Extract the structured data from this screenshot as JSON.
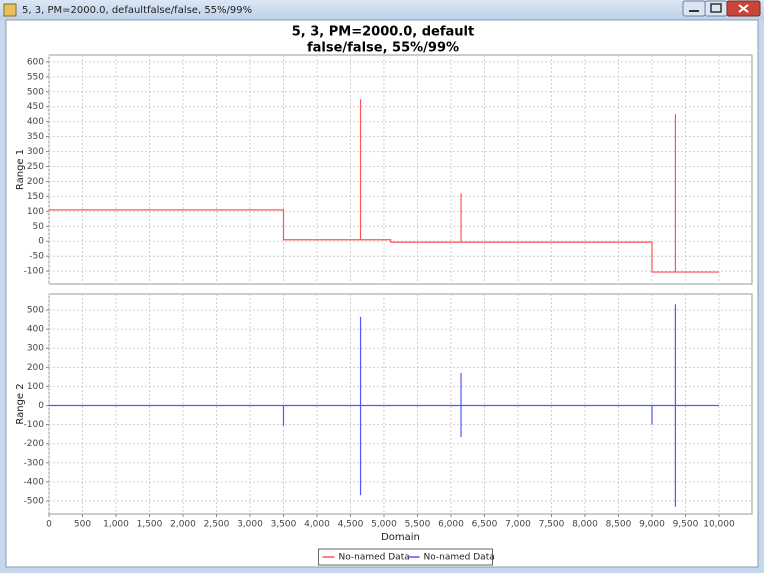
{
  "window": {
    "title": "5, 3, PM=2000.0, defaultfalse/false, 55%/99%"
  },
  "chart_data": [
    {
      "type": "line",
      "title": [
        "5, 3, PM=2000.0, default",
        "false/false, 55%/99%"
      ],
      "ylabel": "Range 1",
      "xlim": [
        0,
        10493
      ],
      "xticks": [
        0,
        500,
        1000,
        1500,
        2000,
        2500,
        3000,
        3500,
        4000,
        4500,
        5000,
        5500,
        6000,
        6500,
        7000,
        7500,
        8000,
        8500,
        9000,
        9500,
        10000
      ],
      "ylim": [
        -143,
        623
      ],
      "yticks": [
        -100,
        -50,
        0,
        50,
        100,
        150,
        200,
        250,
        300,
        350,
        400,
        450,
        500,
        550,
        600
      ],
      "grid": true,
      "series": [
        {
          "name": "No-named Data",
          "color": "#ff5555",
          "x": [
            0,
            3500,
            3500,
            4650,
            4650,
            4650,
            5100,
            5100,
            6150,
            6150,
            6150,
            9000,
            9000,
            9350,
            9350,
            9350,
            10000
          ],
          "values": [
            105,
            105,
            5,
            5,
            475,
            5,
            5,
            -3,
            -3,
            160,
            -3,
            -3,
            -103,
            -103,
            425,
            -103,
            -103
          ]
        }
      ]
    },
    {
      "type": "line",
      "ylabel": "Range 2",
      "xlabel": "Domain",
      "xlim": [
        0,
        10493
      ],
      "xticks": [
        0,
        500,
        {
          "value": 1000,
          "label": "1,000"
        },
        {
          "value": 1500,
          "label": "1,500"
        },
        {
          "value": 2000,
          "label": "2,000"
        },
        {
          "value": 2500,
          "label": "2,500"
        },
        {
          "value": 3000,
          "label": "3,000"
        },
        {
          "value": 3500,
          "label": "3,500"
        },
        {
          "value": 4000,
          "label": "4,000"
        },
        {
          "value": 4500,
          "label": "4,500"
        },
        {
          "value": 5000,
          "label": "5,000"
        },
        {
          "value": 5500,
          "label": "5,500"
        },
        {
          "value": 6000,
          "label": "6,000"
        },
        {
          "value": 6500,
          "label": "6,500"
        },
        {
          "value": 7000,
          "label": "7,000"
        },
        {
          "value": 7500,
          "label": "7,500"
        },
        {
          "value": 8000,
          "label": "8,000"
        },
        {
          "value": 8500,
          "label": "8,500"
        },
        {
          "value": 9000,
          "label": "9,000"
        },
        {
          "value": 9500,
          "label": "9,500"
        },
        {
          "value": 10000,
          "label": "10,000"
        }
      ],
      "ylim": [
        -568,
        584
      ],
      "yticks": [
        -500,
        -400,
        -300,
        -200,
        -100,
        0,
        100,
        200,
        300,
        400,
        500
      ],
      "grid": true,
      "legend": "bottom",
      "series": [
        {
          "name": "No-named Data",
          "color": "#5555ff",
          "x": [
            0,
            3500,
            3500,
            3500,
            4650,
            4650,
            4650,
            4650,
            6150,
            6150,
            6150,
            6150,
            9000,
            9000,
            9000,
            9350,
            9350,
            9350,
            9350,
            10000
          ],
          "values": [
            0,
            0,
            -105,
            0,
            0,
            465,
            -470,
            0,
            0,
            170,
            -165,
            0,
            0,
            -100,
            0,
            0,
            530,
            -530,
            0,
            0
          ]
        }
      ]
    }
  ]
}
